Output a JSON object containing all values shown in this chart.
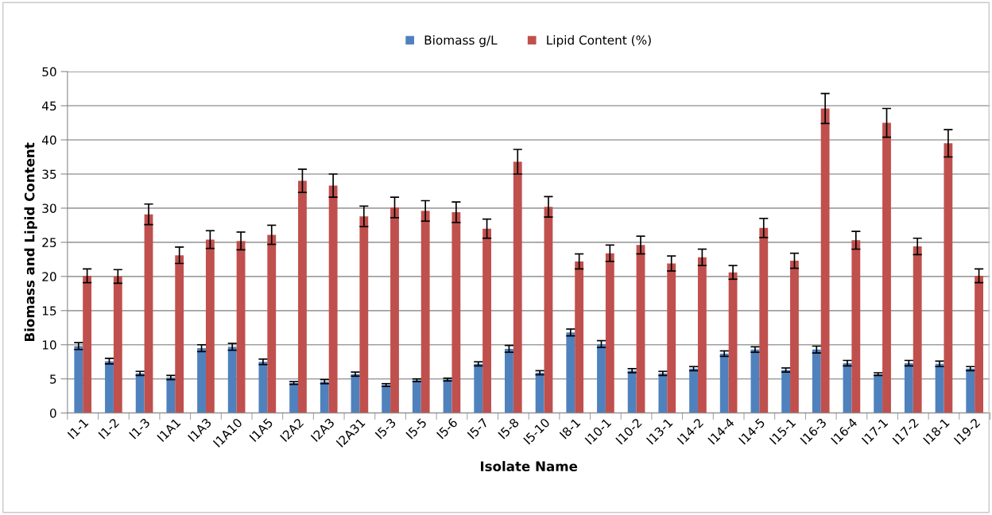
{
  "chart_data": {
    "type": "bar",
    "xlabel": "Isolate Name",
    "ylabel": "Biomass and Lipid Content",
    "categories": [
      "I1-1",
      "I1-2",
      "I1-3",
      "I1A1",
      "I1A3",
      "I1A10",
      "I1A5",
      "I2A2",
      "I2A3",
      "I2A31",
      "I5-3",
      "I5-5",
      "I5-6",
      "I5-7",
      "I5-8",
      "I5-10",
      "I8-1",
      "I10-1",
      "I10-2",
      "I13-1",
      "I14-2",
      "I14-4",
      "I14-5",
      "I15-1",
      "I16-3",
      "I16-4",
      "I17-1",
      "I17-2",
      "I18-1",
      "I19-2"
    ],
    "series": [
      {
        "name": "Biomass g/L",
        "color": "#4f81bd",
        "values": [
          9.8,
          7.6,
          5.8,
          5.2,
          9.5,
          9.7,
          7.5,
          4.4,
          4.6,
          5.7,
          4.1,
          4.8,
          4.9,
          7.2,
          9.4,
          5.9,
          11.8,
          10.1,
          6.2,
          5.8,
          6.5,
          8.7,
          9.3,
          6.3,
          9.3,
          7.3,
          5.7,
          7.3,
          7.2,
          6.5
        ],
        "errors": [
          0.5,
          0.4,
          0.3,
          0.3,
          0.5,
          0.5,
          0.4,
          0.2,
          0.3,
          0.3,
          0.2,
          0.2,
          0.2,
          0.3,
          0.5,
          0.3,
          0.5,
          0.5,
          0.3,
          0.3,
          0.3,
          0.4,
          0.4,
          0.3,
          0.5,
          0.4,
          0.2,
          0.4,
          0.4,
          0.3
        ]
      },
      {
        "name": "Lipid Content (%)",
        "color": "#c0504d",
        "values": [
          20.1,
          20.0,
          29.1,
          23.1,
          25.4,
          25.2,
          26.1,
          34.0,
          33.3,
          28.8,
          30.1,
          29.6,
          29.4,
          27.0,
          36.8,
          30.2,
          22.2,
          23.4,
          24.6,
          21.9,
          22.8,
          20.6,
          27.1,
          22.3,
          44.6,
          25.3,
          42.5,
          24.4,
          39.5,
          20.1
        ],
        "errors": [
          1.0,
          1.0,
          1.5,
          1.2,
          1.3,
          1.3,
          1.4,
          1.7,
          1.7,
          1.5,
          1.5,
          1.5,
          1.5,
          1.4,
          1.8,
          1.5,
          1.1,
          1.2,
          1.3,
          1.1,
          1.2,
          1.0,
          1.4,
          1.1,
          2.2,
          1.3,
          2.1,
          1.2,
          2.0,
          1.0
        ]
      }
    ],
    "ylim": [
      0,
      50
    ],
    "yticks": [
      0,
      5,
      10,
      15,
      20,
      25,
      30,
      35,
      40,
      45,
      50
    ],
    "grid": "y",
    "legend": "top"
  }
}
